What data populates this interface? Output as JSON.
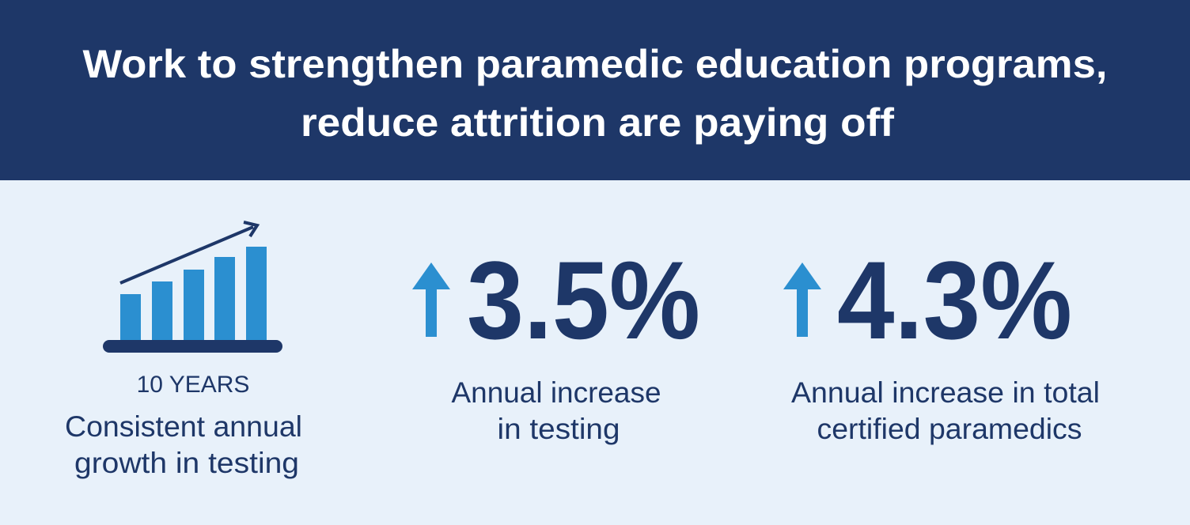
{
  "header": {
    "title": [
      "Work to strengthen paramedic education programs,",
      "reduce attrition are paying off"
    ]
  },
  "stats": [
    {
      "label": "10 YEARS",
      "caption": [
        "Consistent annual",
        "growth in testing"
      ]
    },
    {
      "value": "3.5%",
      "caption": [
        "Annual increase",
        "in testing"
      ]
    },
    {
      "value": "4.3%",
      "caption": [
        "Annual increase in total",
        "certified paramedics"
      ]
    }
  ]
}
